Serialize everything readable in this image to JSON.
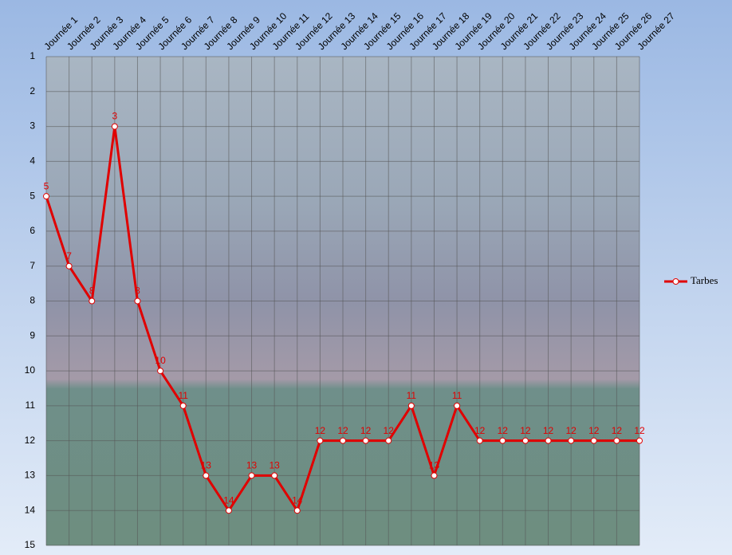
{
  "chart_data": {
    "type": "line",
    "categories": [
      "Journée 1",
      "Journée 2",
      "Journée 3",
      "Journée 4",
      "Journée 5",
      "Journée 6",
      "Journée 7",
      "Journée 8",
      "Journée 9",
      "Journée 10",
      "Journée 11",
      "Journée 12",
      "Journée 13",
      "Journée 14",
      "Journée 15",
      "Journée 16",
      "Journée 17",
      "Journée 18",
      "Journée 19",
      "Journée 20",
      "Journée 21",
      "Journée 22",
      "Journée 23",
      "Journée 24",
      "Journée 25",
      "Journée 26",
      "Journée 27"
    ],
    "series": [
      {
        "name": "Tarbes",
        "color": "#e00000",
        "values": [
          5,
          7,
          8,
          3,
          8,
          10,
          11,
          13,
          14,
          13,
          13,
          14,
          12,
          12,
          12,
          12,
          11,
          13,
          11,
          12,
          12,
          12,
          12,
          12,
          12,
          12,
          12
        ]
      }
    ],
    "ylim": [
      1,
      15
    ],
    "y_inverted": true,
    "yticks": [
      1,
      2,
      3,
      4,
      5,
      6,
      7,
      8,
      9,
      10,
      11,
      12,
      13,
      14,
      15
    ],
    "grid": true,
    "legend": "right",
    "data_labels": true
  }
}
